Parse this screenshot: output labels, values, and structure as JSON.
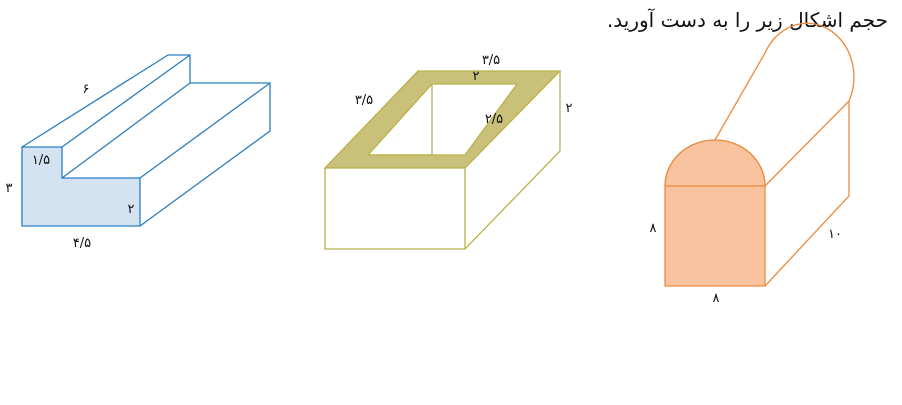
{
  "title": "حجم اشکال زیر را به دست آورید.",
  "shapes": {
    "stepped_prism": {
      "length": "۶",
      "top_step_width": "۱/۵",
      "height": "۳",
      "lower_height": "۲",
      "base_width": "۴/۵"
    },
    "hollow_box": {
      "outer_length": "۳/۵",
      "inner_length": "۲",
      "outer_width": "۳/۵",
      "inner_width": "۲/۵",
      "height": "۲"
    },
    "arched_prism": {
      "height": "۸",
      "width": "۸",
      "length": "۱۰"
    }
  },
  "colors": {
    "blue_stroke": "#2b7fc1",
    "blue_fill": "#d3e3f2",
    "olive_stroke": "#b8b24a",
    "olive_fill": "#c9c079",
    "orange_stroke": "#ee8a3c",
    "orange_fill": "#f9c3a0"
  }
}
